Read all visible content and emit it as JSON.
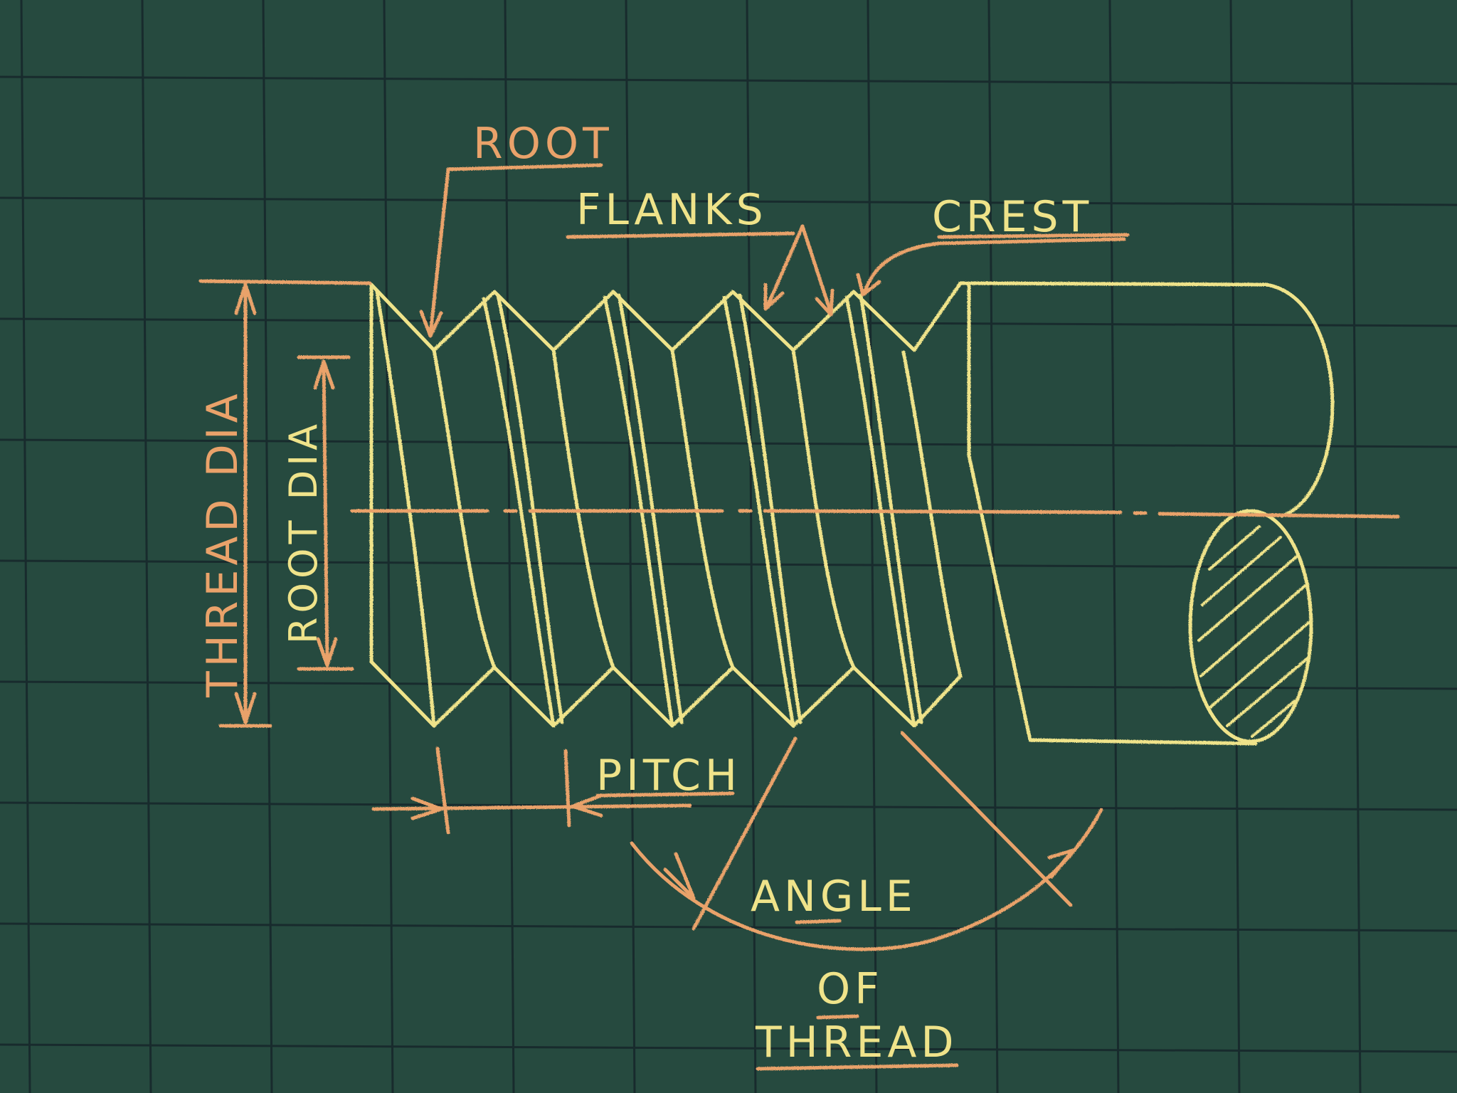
{
  "colors": {
    "board": "#264a3f",
    "grid": "#16262a",
    "chalk_yellow": "#efe38a",
    "chalk_orange": "#e9a26a"
  },
  "labels": {
    "root": "ROOT",
    "flanks": "FLANKS",
    "crest": "CREST",
    "thread_dia": "THREAD DIA",
    "root_dia": "ROOT DIA",
    "pitch": "PITCH",
    "angle": "ANGLE",
    "of": "OF",
    "thread": "THREAD"
  }
}
